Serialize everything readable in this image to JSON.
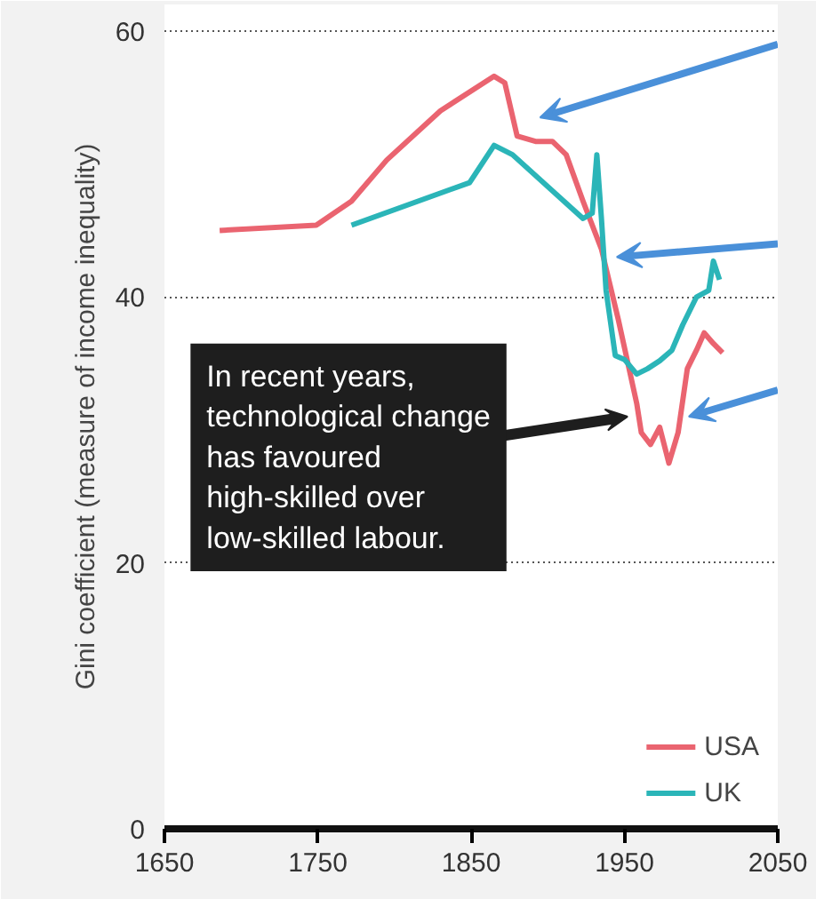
{
  "chart_data": {
    "type": "line",
    "ylabel": "Gini coefficient (measure of income inequality)",
    "xlim": [
      1650,
      2050
    ],
    "ylim": [
      0,
      62
    ],
    "xticks": [
      1650,
      1750,
      1850,
      1950,
      2050
    ],
    "yticks": [
      0,
      20,
      40,
      60
    ],
    "grid": "y",
    "legend": "bottom right",
    "series": [
      {
        "name": "USA",
        "color": "#ea6470",
        "x": [
          1686,
          1749,
          1772,
          1795,
          1830,
          1865,
          1872,
          1880,
          1892,
          1903,
          1912,
          1923,
          1935,
          1946,
          1958,
          1961,
          1967,
          1973,
          1979,
          1985,
          1991,
          1997,
          2002,
          2008,
          2014
        ],
        "values": [
          45,
          45.4,
          47.2,
          50.3,
          54,
          56.6,
          56.1,
          52.1,
          51.7,
          51.7,
          50.7,
          47.2,
          43.6,
          38.3,
          32,
          29.8,
          28.9,
          30.2,
          27.5,
          29.8,
          34.6,
          36,
          37.3,
          36.5,
          35.8
        ]
      },
      {
        "name": "UK",
        "color": "#2bb5b8",
        "x": [
          1772,
          1849,
          1865,
          1877,
          1923,
          1929,
          1932,
          1935,
          1938,
          1944,
          1950,
          1958,
          1965,
          1973,
          1981,
          1988,
          1997,
          2005,
          2008,
          2012
        ],
        "values": [
          45.4,
          48.6,
          51.4,
          50.7,
          45.9,
          46.3,
          50.7,
          45.9,
          40.5,
          35.6,
          35.3,
          34.2,
          34.6,
          35.2,
          36,
          37.9,
          40,
          40.5,
          42.7,
          41.3
        ]
      }
    ],
    "annotations": [
      {
        "text": "In recent years,\ntechnological change\nhas favoured\nhigh-skilled over\nlow-skilled labour.",
        "x": 1952,
        "y": 31
      }
    ]
  }
}
